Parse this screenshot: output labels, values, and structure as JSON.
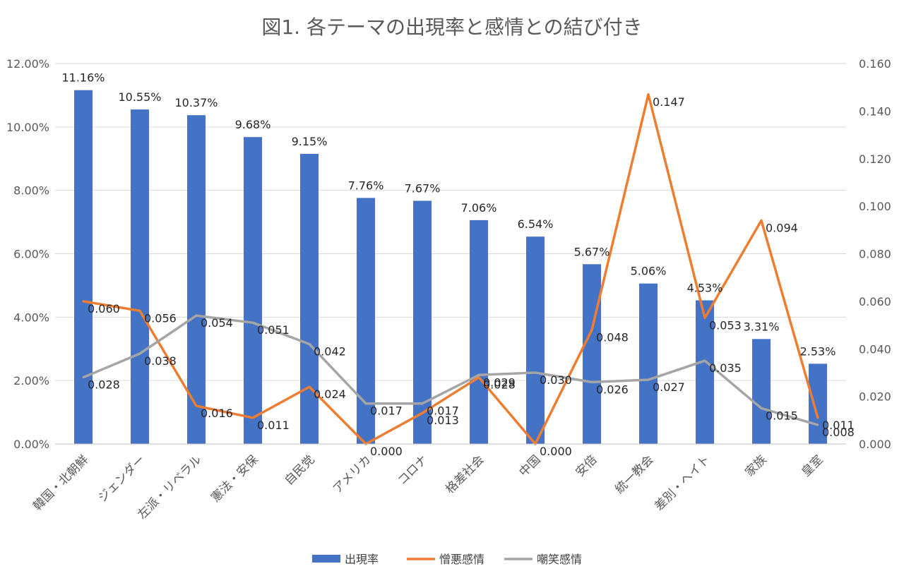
{
  "chart_data": {
    "type": "bar",
    "title": "図1. 各テーマの出現率と感情との結び付き",
    "categories": [
      "韓国・北朝鮮",
      "ジェンダー",
      "左派・リベラル",
      "憲法・安保",
      "自民党",
      "アメリカ",
      "コロナ",
      "格差社会",
      "中国",
      "安倍",
      "統一教会",
      "差別・ヘイト",
      "家族",
      "皇室"
    ],
    "y_left": {
      "ylim": [
        0,
        12
      ],
      "ticks": [
        "0.00%",
        "2.00%",
        "4.00%",
        "6.00%",
        "8.00%",
        "10.00%",
        "12.00%"
      ]
    },
    "y_right": {
      "ylim": [
        0,
        0.16
      ],
      "ticks": [
        "0.000",
        "0.020",
        "0.040",
        "0.060",
        "0.080",
        "0.100",
        "0.120",
        "0.140",
        "0.160"
      ]
    },
    "grid": true,
    "legend_position": "bottom",
    "series": [
      {
        "name": "出現率",
        "kind": "bar",
        "axis": "left",
        "color": "#4472C4",
        "values": [
          11.16,
          10.55,
          10.37,
          9.68,
          9.15,
          7.76,
          7.67,
          7.06,
          6.54,
          5.67,
          5.06,
          4.53,
          3.31,
          2.53
        ],
        "labels": [
          "11.16%",
          "10.55%",
          "10.37%",
          "9.68%",
          "9.15%",
          "7.76%",
          "7.67%",
          "7.06%",
          "6.54%",
          "5.67%",
          "5.06%",
          "4.53%",
          "3.31%",
          "2.53%"
        ]
      },
      {
        "name": "憎悪感情",
        "kind": "line",
        "axis": "right",
        "color": "#ED7D31",
        "values": [
          0.06,
          0.056,
          0.016,
          0.011,
          0.024,
          0.0,
          0.013,
          0.028,
          0.0,
          0.048,
          0.147,
          0.053,
          0.094,
          0.011
        ],
        "labels": [
          "0.060",
          "0.056",
          "0.016",
          "0.011",
          "0.024",
          "0.000",
          "0.013",
          "0.028",
          "0.000",
          "0.048",
          "0.147",
          "0.053",
          "0.094",
          "0.011"
        ]
      },
      {
        "name": "嘲笑感情",
        "kind": "line",
        "axis": "right",
        "color": "#A5A5A5",
        "values": [
          0.028,
          0.038,
          0.054,
          0.051,
          0.042,
          0.017,
          0.017,
          0.029,
          0.03,
          0.026,
          0.027,
          0.035,
          0.015,
          0.008
        ],
        "labels": [
          "0.028",
          "0.038",
          "0.054",
          "0.051",
          "0.042",
          "0.017",
          "0.017",
          "0.029",
          "0.030",
          "0.026",
          "0.027",
          "0.035",
          "0.015",
          "0.008"
        ]
      }
    ]
  }
}
